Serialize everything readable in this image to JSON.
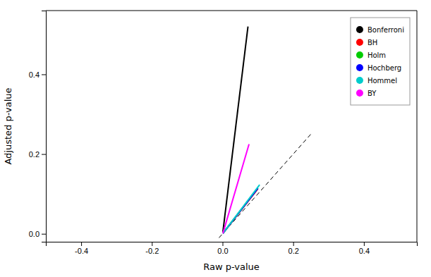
{
  "chart_data": {
    "type": "line",
    "xlabel": "Raw p-value",
    "ylabel": "Adjusted p-value",
    "xlim": [
      -0.5,
      0.55
    ],
    "ylim": [
      -0.02,
      0.56
    ],
    "xticks": [
      -0.4,
      -0.2,
      {
        "value": 0.0,
        "label": "0.0"
      },
      0.2,
      0.4
    ],
    "yticks": [
      {
        "value": 0.0,
        "label": "0.0"
      },
      0.2,
      0.4
    ],
    "grid": false,
    "legend": "upper right",
    "series": [
      {
        "name": "Bonferroni",
        "color": "#000000",
        "line_style": "solid",
        "x": [
          0.001,
          0.072
        ],
        "values": [
          0.005,
          0.52
        ]
      },
      {
        "name": "BH",
        "color": "#ff0000",
        "line_style": "solid",
        "x": [
          0.001,
          0.1
        ],
        "values": [
          0.001,
          0.113
        ]
      },
      {
        "name": "Holm",
        "color": "#00cc00",
        "line_style": "solid",
        "x": [
          0.001,
          0.1
        ],
        "values": [
          0.001,
          0.115
        ]
      },
      {
        "name": "Hochberg",
        "color": "#0000ff",
        "line_style": "solid",
        "x": [
          0.001,
          0.1
        ],
        "values": [
          0.001,
          0.114
        ]
      },
      {
        "name": "Hommel",
        "color": "#00cccc",
        "line_style": "solid",
        "x": [
          0.001,
          0.105
        ],
        "values": [
          0.001,
          0.123
        ]
      },
      {
        "name": "BY",
        "color": "#ff00ff",
        "line_style": "solid",
        "x": [
          0.001,
          0.075
        ],
        "values": [
          0.001,
          0.225
        ]
      },
      {
        "color": "#000000",
        "line_style": "dashed",
        "x": [
          -0.01,
          0.25
        ],
        "values": [
          -0.01,
          0.25
        ]
      }
    ]
  }
}
